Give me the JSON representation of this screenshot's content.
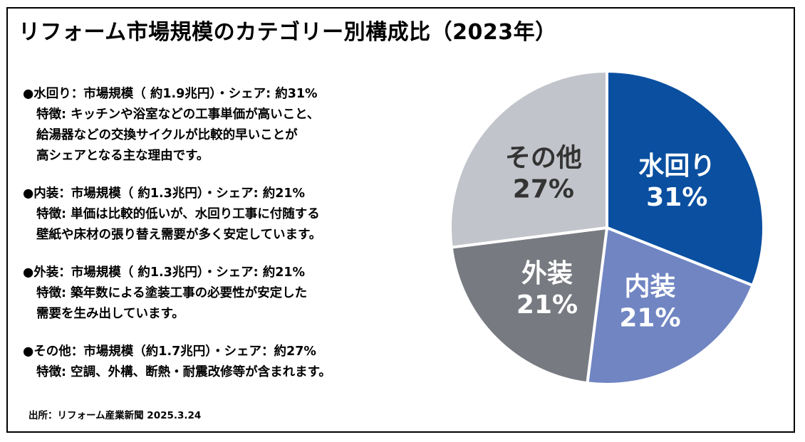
{
  "title": "リフォーム市場規模のカテゴリー別構成比（2023年）",
  "descriptions": [
    {
      "heading": "●水回り：市場規模（ 約1.9兆円）・シェア: 約31%",
      "details": [
        "特徴: キッチンや浴室などの工事単価が高いこと、",
        "給湯器などの交換サイクルが比較的早いことが",
        "高シェアとなる主な理由です。"
      ]
    },
    {
      "heading": "●内装：市場規模（ 約1.3兆円）・シェア: 約21%",
      "details": [
        "特徴: 単価は比較的低いが、水回り工事に付随する",
        "壁紙や床材の張り替え需要が多く安定しています。"
      ]
    },
    {
      "heading": "●外装：市場規模（ 約1.3兆円）・シェア: 約21%",
      "details": [
        "特徴: 築年数による塗装工事の必要性が安定した",
        "需要を生み出しています。"
      ]
    },
    {
      "heading": "●その他：市場規模（約1.7兆円）・シェア：約27%",
      "details": [
        "特徴: 空調、外構、断熱・耐震改修等が含まれます。"
      ]
    }
  ],
  "source": "出所：リフォーム産業新聞 2025.3.24",
  "chart_data": {
    "type": "pie",
    "title": "リフォーム市場規模のカテゴリー別構成比（2023年）",
    "slices": [
      {
        "label": "水回り",
        "value": 31,
        "display": "31%",
        "color": "#0a4fa0",
        "text_color": "#ffffff"
      },
      {
        "label": "内装",
        "value": 21,
        "display": "21%",
        "color": "#7085c2",
        "text_color": "#ffffff"
      },
      {
        "label": "外装",
        "value": 21,
        "display": "21%",
        "color": "#777a80",
        "text_color": "#ffffff"
      },
      {
        "label": "その他",
        "value": 27,
        "display": "27%",
        "color": "#c2c4cb",
        "text_color": "#333333"
      }
    ],
    "start_angle_deg": 0,
    "direction": "clockwise"
  }
}
